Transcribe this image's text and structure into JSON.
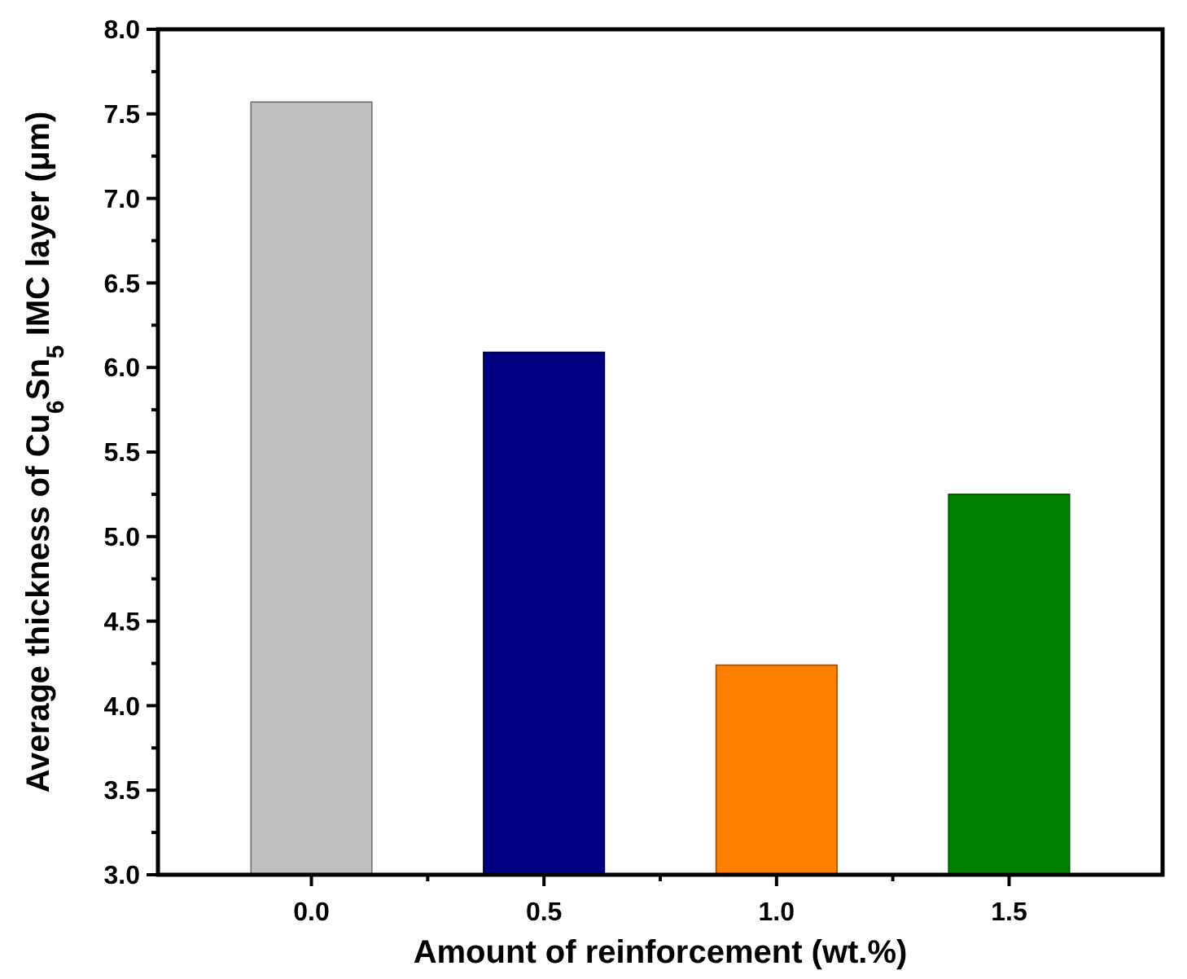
{
  "chart_data": {
    "type": "bar",
    "xlabel": "Amount of reinforcement (wt.%)",
    "ylabel": "Average thickness of Cu$_{6}$Sn$_{5}$ IMC layer (μm)",
    "categories": [
      "0.0",
      "0.5",
      "1.0",
      "1.5"
    ],
    "values": [
      7.57,
      6.09,
      4.24,
      5.25
    ],
    "colors": [
      "#c0c0c0",
      "#000080",
      "#ff8000",
      "#008000"
    ],
    "ylim": [
      3,
      8
    ],
    "yticks": [
      {
        "value": 3,
        "label": "3.0"
      },
      {
        "value": 3.5,
        "label": "3.5"
      },
      {
        "value": 4,
        "label": "4.0"
      },
      {
        "value": 4.5,
        "label": "4.5"
      },
      {
        "value": 5,
        "label": "5.0"
      },
      {
        "value": 5.5,
        "label": "5.5"
      },
      {
        "value": 6,
        "label": "6.0"
      },
      {
        "value": 6.5,
        "label": "6.5"
      },
      {
        "value": 7,
        "label": "7.0"
      },
      {
        "value": 7.5,
        "label": "7.5"
      },
      {
        "value": 8,
        "label": "8.0"
      }
    ],
    "grid": false
  }
}
